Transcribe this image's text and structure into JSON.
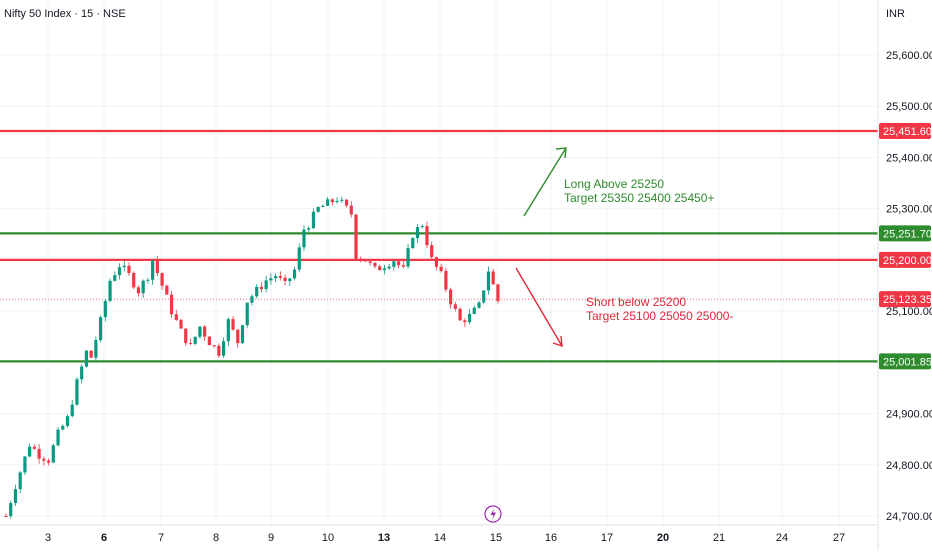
{
  "header": {
    "title": "Nifty 50 Index · 15 · NSE",
    "currency": "INR"
  },
  "colors": {
    "up": "#089981",
    "down": "#f23645",
    "red_level": "#f23645",
    "green_level": "#2e8b2e",
    "long_text": "#2e8b2e",
    "short_text": "#e0263a",
    "current": "#f23645",
    "event": "#9c27b0"
  },
  "event_icon": "lightning-icon",
  "chart_data": {
    "type": "candlestick",
    "title": "Nifty 50 Index · 15 · NSE",
    "ylim": [
      24680,
      25700
    ],
    "y_ticks": [
      "25,600.00",
      "25,500.00",
      "25,400.00",
      "25,300.00",
      "25,100.00",
      "24,900.00",
      "24,800.00",
      "24,700.00"
    ],
    "y_tick_values": [
      25600,
      25500,
      25400,
      25300,
      25100,
      24900,
      24800,
      24700
    ],
    "x_ticks": [
      {
        "label": "3",
        "bold": false
      },
      {
        "label": "6",
        "bold": true
      },
      {
        "label": "7",
        "bold": false
      },
      {
        "label": "8",
        "bold": false
      },
      {
        "label": "9",
        "bold": false
      },
      {
        "label": "10",
        "bold": false
      },
      {
        "label": "13",
        "bold": true
      },
      {
        "label": "14",
        "bold": false
      },
      {
        "label": "15",
        "bold": false
      },
      {
        "label": "16",
        "bold": false
      },
      {
        "label": "17",
        "bold": false
      },
      {
        "label": "20",
        "bold": true
      },
      {
        "label": "21",
        "bold": false
      },
      {
        "label": "24",
        "bold": false
      },
      {
        "label": "27",
        "bold": false
      }
    ],
    "levels": [
      {
        "value": 25451.6,
        "label": "25,451.60",
        "kind": "red"
      },
      {
        "value": 25251.7,
        "label": "25,251.70",
        "kind": "green"
      },
      {
        "value": 25200.0,
        "label": "25,200.00",
        "kind": "red"
      },
      {
        "value": 25001.85,
        "label": "25,001.85",
        "kind": "green"
      }
    ],
    "current": {
      "value": 25123.35,
      "label": "25,123.35"
    },
    "annotations": {
      "long": [
        "Long Above 25250",
        "Target 25350 25400 25450+"
      ],
      "short": [
        "Short below 25200",
        "Target 25100 25050 25000-"
      ]
    },
    "path": [
      [
        0,
        24700
      ],
      [
        2,
        24760
      ],
      [
        5,
        24840
      ],
      [
        7,
        24820
      ],
      [
        9,
        24810
      ],
      [
        11,
        24860
      ],
      [
        13,
        24890
      ],
      [
        15,
        24960
      ],
      [
        17,
        25020
      ],
      [
        18,
        25010
      ],
      [
        20,
        25080
      ],
      [
        22,
        25160
      ],
      [
        24,
        25190
      ],
      [
        26,
        25170
      ],
      [
        28,
        25140
      ],
      [
        30,
        25170
      ],
      [
        31,
        25200
      ],
      [
        33,
        25150
      ],
      [
        35,
        25100
      ],
      [
        37,
        25060
      ],
      [
        39,
        25030
      ],
      [
        41,
        25070
      ],
      [
        43,
        25040
      ],
      [
        45,
        25020
      ],
      [
        47,
        25080
      ],
      [
        49,
        25040
      ],
      [
        51,
        25120
      ],
      [
        53,
        25140
      ],
      [
        55,
        25160
      ],
      [
        57,
        25170
      ],
      [
        59,
        25150
      ],
      [
        61,
        25180
      ],
      [
        63,
        25260
      ],
      [
        64,
        25270
      ],
      [
        66,
        25300
      ],
      [
        68,
        25310
      ],
      [
        70,
        25320
      ],
      [
        72,
        25300
      ],
      [
        73,
        25290
      ],
      [
        74,
        25210
      ],
      [
        76,
        25200
      ],
      [
        78,
        25180
      ],
      [
        80,
        25190
      ],
      [
        82,
        25200
      ],
      [
        84,
        25180
      ],
      [
        86,
        25250
      ],
      [
        88,
        25270
      ],
      [
        90,
        25200
      ],
      [
        92,
        25170
      ],
      [
        94,
        25120
      ],
      [
        96,
        25080
      ],
      [
        98,
        25090
      ],
      [
        100,
        25110
      ],
      [
        102,
        25180
      ],
      [
        104,
        25120
      ]
    ]
  }
}
